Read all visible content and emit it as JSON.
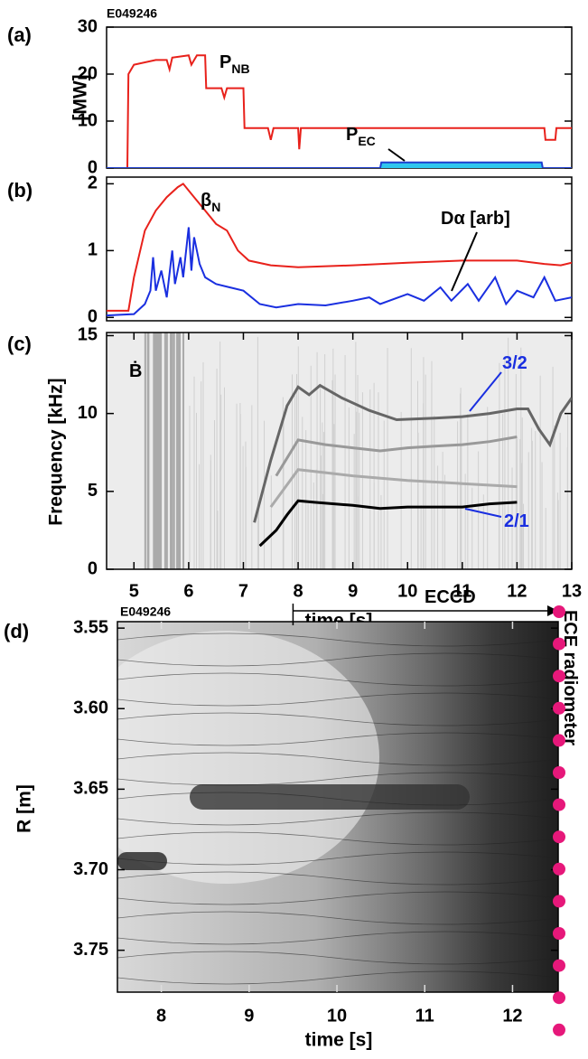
{
  "chart_data": [
    {
      "type": "line",
      "panel_label": "(a)",
      "label": "E049246",
      "ylabel": "[MW]",
      "xlim": [
        4.5,
        13
      ],
      "ylim": [
        0,
        30
      ],
      "yticks": [
        0,
        10,
        20,
        30
      ],
      "series": [
        {
          "color": "#e8211b",
          "x": [
            4.5,
            4.88,
            4.9,
            5.0,
            5.4,
            5.6,
            5.65,
            5.7,
            6.0,
            6.05,
            6.15,
            6.3,
            6.32,
            6.6,
            6.65,
            6.7,
            7.0,
            7.02,
            7.45,
            7.5,
            7.55,
            8.0,
            8.02,
            8.05,
            12.5,
            12.52,
            12.7,
            12.72,
            13
          ],
          "values": [
            0,
            0,
            20,
            22,
            23,
            23,
            21,
            23.5,
            24,
            22,
            24,
            24,
            17,
            17,
            15,
            17,
            17,
            8.5,
            8.5,
            6,
            8.5,
            8.5,
            4,
            8.5,
            8.5,
            6,
            6,
            8.5,
            8.5
          ]
        },
        {
          "color": "#1f3fd0",
          "fill": "#2ec6ee",
          "x": [
            4.5,
            9.5,
            9.52,
            12.45,
            12.47,
            13
          ],
          "values": [
            0,
            0,
            1.2,
            1.2,
            0,
            0
          ]
        }
      ],
      "annotations": [
        {
          "text": "P",
          "sub": "NB"
        },
        {
          "text": "P",
          "sub": "EC"
        }
      ]
    },
    {
      "type": "line",
      "panel_label": "(b)",
      "xlim": [
        4.5,
        13
      ],
      "ylim": [
        -0.05,
        2.1
      ],
      "yticks": [
        0,
        1,
        2
      ],
      "series": [
        {
          "color": "#e8211b",
          "x": [
            4.5,
            4.9,
            5.0,
            5.2,
            5.4,
            5.6,
            5.8,
            5.9,
            6.1,
            6.3,
            6.5,
            6.7,
            6.9,
            7.1,
            7.5,
            8,
            9,
            10,
            11,
            12,
            12.5,
            12.8,
            13
          ],
          "values": [
            0.1,
            0.1,
            0.6,
            1.3,
            1.6,
            1.8,
            1.95,
            2.0,
            1.8,
            1.6,
            1.4,
            1.3,
            1.0,
            0.85,
            0.78,
            0.75,
            0.78,
            0.82,
            0.85,
            0.85,
            0.8,
            0.78,
            0.82
          ]
        },
        {
          "color": "#1a2fe0",
          "x": [
            4.5,
            5,
            5.2,
            5.3,
            5.35,
            5.4,
            5.5,
            5.6,
            5.7,
            5.75,
            5.85,
            5.9,
            6.0,
            6.05,
            6.1,
            6.2,
            6.3,
            6.5,
            7,
            7.3,
            7.6,
            8,
            8.5,
            9,
            9.3,
            9.5,
            10,
            10.3,
            10.6,
            10.8,
            11.1,
            11.3,
            11.6,
            11.8,
            12,
            12.3,
            12.5,
            12.7,
            13
          ],
          "values": [
            0.03,
            0.05,
            0.2,
            0.4,
            0.9,
            0.4,
            0.7,
            0.3,
            1.0,
            0.5,
            0.9,
            0.6,
            1.35,
            0.7,
            1.2,
            0.8,
            0.6,
            0.5,
            0.4,
            0.2,
            0.15,
            0.2,
            0.18,
            0.25,
            0.3,
            0.2,
            0.35,
            0.25,
            0.45,
            0.25,
            0.5,
            0.25,
            0.6,
            0.2,
            0.4,
            0.3,
            0.6,
            0.25,
            0.3
          ]
        }
      ],
      "annotations": [
        {
          "text": "β",
          "sub": "N"
        },
        {
          "text": "Dα [arb]"
        }
      ]
    },
    {
      "type": "line",
      "panel_label": "(c)",
      "ylabel": "Frequency [kHz]",
      "xlabel": "time [s]",
      "xlim": [
        4.5,
        13
      ],
      "ylim": [
        0,
        15.2
      ],
      "yticks": [
        0,
        5,
        10,
        15
      ],
      "xticks": [
        5,
        6,
        7,
        8,
        9,
        10,
        11,
        12,
        13
      ],
      "series": [
        {
          "color": "#666666",
          "x": [
            7.2,
            7.5,
            7.8,
            8,
            8.2,
            8.4,
            8.8,
            9.3,
            9.8,
            10.5,
            11,
            11.5,
            12,
            12.2,
            12.4,
            12.6,
            12.8,
            13
          ],
          "values": [
            3,
            7,
            10.5,
            11.7,
            11.2,
            11.8,
            11,
            10.2,
            9.6,
            9.7,
            9.8,
            10.0,
            10.3,
            10.3,
            9.0,
            8.0,
            10,
            11
          ]
        },
        {
          "color": "#999999",
          "x": [
            7.6,
            8,
            8.5,
            9,
            9.5,
            10,
            10.5,
            11,
            11.5,
            12
          ],
          "values": [
            6,
            8.3,
            8.0,
            7.8,
            7.6,
            7.8,
            7.9,
            8.0,
            8.2,
            8.5
          ]
        },
        {
          "color": "#aaaaaa",
          "x": [
            7.5,
            8,
            8.5,
            9,
            10,
            11,
            12
          ],
          "values": [
            4,
            6.4,
            6.2,
            6.0,
            5.7,
            5.5,
            5.3
          ]
        },
        {
          "color": "#000000",
          "x": [
            7.3,
            7.6,
            7.8,
            8,
            8.3,
            9,
            9.5,
            10,
            11,
            11.5,
            12
          ],
          "values": [
            1.5,
            2.5,
            3.5,
            4.4,
            4.3,
            4.1,
            3.9,
            4.0,
            4.0,
            4.2,
            4.3
          ]
        }
      ],
      "annotations": [
        {
          "text": "Ḃ"
        },
        {
          "text": "3/2"
        },
        {
          "text": "2/1"
        }
      ]
    },
    {
      "type": "contour",
      "panel_label": "(d)",
      "label": "E049246",
      "ylabel": "R [m]",
      "xlabel": "time [s]",
      "xlim": [
        7.5,
        12.52
      ],
      "ylim": [
        3.546,
        3.776
      ],
      "y_inverted": true,
      "xticks": [
        8,
        9,
        10,
        11,
        12
      ],
      "yticks": [
        3.55,
        {
          "value": 3.6,
          "label": "3.60"
        },
        3.65,
        {
          "value": 3.7,
          "label": "3.70"
        },
        3.75
      ],
      "annotations": [
        {
          "text": "ECCD"
        },
        {
          "text": "ECE radiometer"
        }
      ]
    }
  ]
}
